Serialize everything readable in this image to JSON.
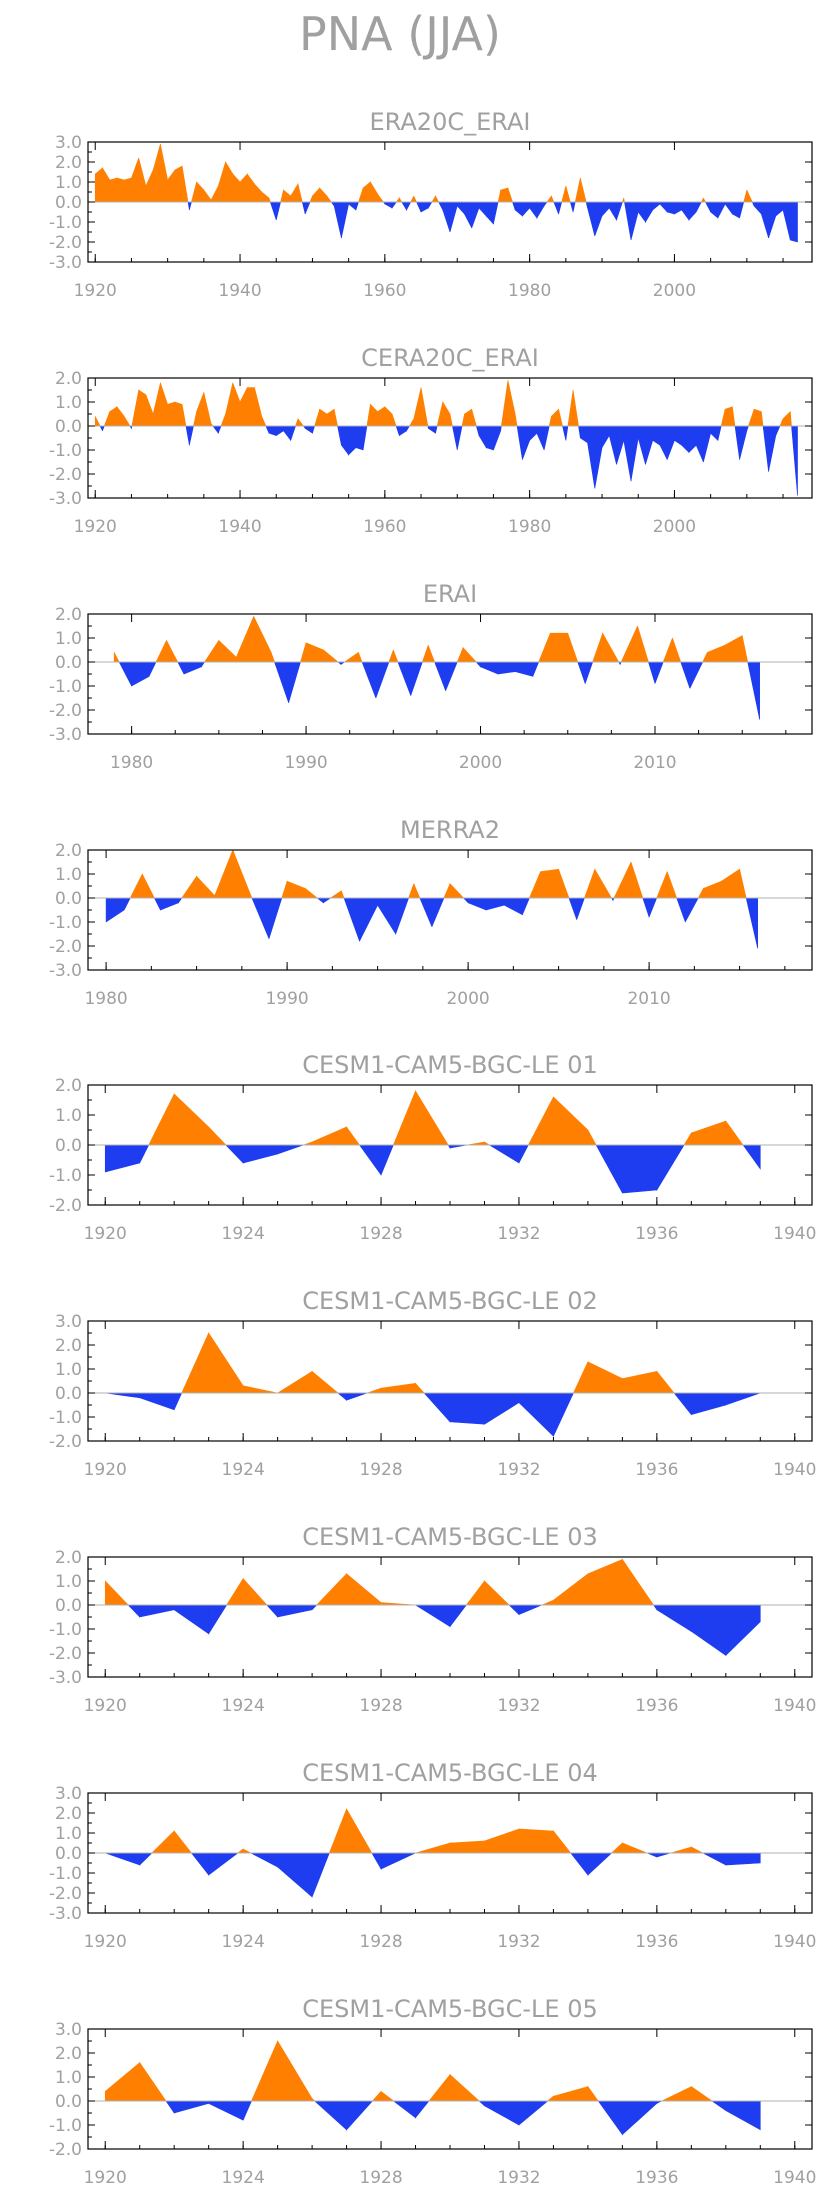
{
  "figure_title": "PNA (JJA)",
  "colors": {
    "positive": "#ff8000",
    "negative": "#1e3cf0",
    "text": "#a0a0a0",
    "frame": "#000000"
  },
  "chart_data": [
    {
      "type": "area",
      "title": "ERA20C_ERAI",
      "xlim": [
        1919,
        2019
      ],
      "ylim": [
        -3,
        3
      ],
      "xticks": [
        "1920",
        "1940",
        "1960",
        "1980",
        "2000"
      ],
      "yticks": [
        "3.0",
        "2.0",
        "1.0",
        "0.0",
        "-1.0",
        "-2.0",
        "-3.0"
      ],
      "x": [
        1920,
        1921,
        1922,
        1923,
        1924,
        1925,
        1926,
        1927,
        1928,
        1929,
        1930,
        1931,
        1932,
        1933,
        1934,
        1935,
        1936,
        1937,
        1938,
        1939,
        1940,
        1941,
        1942,
        1943,
        1944,
        1945,
        1946,
        1947,
        1948,
        1949,
        1950,
        1951,
        1952,
        1953,
        1954,
        1955,
        1956,
        1957,
        1958,
        1959,
        1960,
        1961,
        1962,
        1963,
        1964,
        1965,
        1966,
        1967,
        1968,
        1969,
        1970,
        1971,
        1972,
        1973,
        1974,
        1975,
        1976,
        1977,
        1978,
        1979,
        1980,
        1981,
        1982,
        1983,
        1984,
        1985,
        1986,
        1987,
        1988,
        1989,
        1990,
        1991,
        1992,
        1993,
        1994,
        1995,
        1996,
        1997,
        1998,
        1999,
        2000,
        2001,
        2002,
        2003,
        2004,
        2005,
        2006,
        2007,
        2008,
        2009,
        2010,
        2011,
        2012,
        2013,
        2014,
        2015,
        2016,
        2017
      ],
      "values": [
        1.4,
        1.7,
        1.1,
        1.2,
        1.1,
        1.2,
        2.2,
        0.8,
        1.6,
        2.9,
        1.1,
        1.6,
        1.8,
        -0.4,
        1.0,
        0.6,
        0.1,
        0.8,
        2.0,
        1.4,
        1.0,
        1.4,
        0.9,
        0.5,
        0.2,
        -0.9,
        0.6,
        0.3,
        0.9,
        -0.6,
        0.3,
        0.7,
        0.3,
        -0.2,
        -1.8,
        -0.1,
        -0.4,
        0.7,
        1.0,
        0.4,
        -0.1,
        -0.3,
        0.2,
        -0.4,
        0.3,
        -0.5,
        -0.3,
        0.3,
        -0.4,
        -1.5,
        -0.2,
        -0.6,
        -1.3,
        -0.3,
        -0.7,
        -1.1,
        0.6,
        0.7,
        -0.4,
        -0.7,
        -0.3,
        -0.8,
        -0.2,
        0.3,
        -0.6,
        0.8,
        -0.5,
        1.2,
        -0.3,
        -1.7,
        -0.7,
        -0.3,
        -0.9,
        0.2,
        -1.9,
        -0.5,
        -1.0,
        -0.4,
        -0.1,
        -0.5,
        -0.6,
        -0.4,
        -0.9,
        -0.5,
        0.2,
        -0.5,
        -0.8,
        -0.1,
        -0.6,
        -0.8,
        0.6,
        -0.2,
        -0.6,
        -1.8,
        -0.7,
        -0.4,
        -1.9,
        -2.0
      ]
    },
    {
      "type": "area",
      "title": "CERA20C_ERAI",
      "xlim": [
        1919,
        2019
      ],
      "ylim": [
        -3,
        2
      ],
      "xticks": [
        "1920",
        "1940",
        "1960",
        "1980",
        "2000"
      ],
      "yticks": [
        "2.0",
        "1.0",
        "0.0",
        "-1.0",
        "-2.0",
        "-3.0"
      ],
      "x": [
        1920,
        1921,
        1922,
        1923,
        1924,
        1925,
        1926,
        1927,
        1928,
        1929,
        1930,
        1931,
        1932,
        1933,
        1934,
        1935,
        1936,
        1937,
        1938,
        1939,
        1940,
        1941,
        1942,
        1943,
        1944,
        1945,
        1946,
        1947,
        1948,
        1949,
        1950,
        1951,
        1952,
        1953,
        1954,
        1955,
        1956,
        1957,
        1958,
        1959,
        1960,
        1961,
        1962,
        1963,
        1964,
        1965,
        1966,
        1967,
        1968,
        1969,
        1970,
        1971,
        1972,
        1973,
        1974,
        1975,
        1976,
        1977,
        1978,
        1979,
        1980,
        1981,
        1982,
        1983,
        1984,
        1985,
        1986,
        1987,
        1988,
        1989,
        1990,
        1991,
        1992,
        1993,
        1994,
        1995,
        1996,
        1997,
        1998,
        1999,
        2000,
        2001,
        2002,
        2003,
        2004,
        2005,
        2006,
        2007,
        2008,
        2009,
        2010,
        2011,
        2012,
        2013,
        2014,
        2015,
        2016,
        2017
      ],
      "values": [
        0.4,
        -0.2,
        0.6,
        0.8,
        0.4,
        -0.1,
        1.5,
        1.3,
        0.5,
        1.8,
        0.9,
        1.0,
        0.9,
        -0.8,
        0.6,
        1.4,
        0.1,
        -0.3,
        0.5,
        1.8,
        1.0,
        1.6,
        1.6,
        0.4,
        -0.3,
        -0.4,
        -0.2,
        -0.6,
        0.3,
        -0.1,
        -0.3,
        0.7,
        0.5,
        0.7,
        -0.8,
        -1.2,
        -0.9,
        -1.0,
        0.9,
        0.6,
        0.8,
        0.5,
        -0.4,
        -0.2,
        0.3,
        1.6,
        -0.1,
        -0.3,
        1.0,
        0.5,
        -1.0,
        0.5,
        0.7,
        -0.4,
        -0.9,
        -1.0,
        -0.2,
        1.9,
        0.5,
        -1.4,
        -0.6,
        -0.3,
        -1.0,
        0.4,
        0.7,
        -0.6,
        1.5,
        -0.5,
        -0.7,
        -2.6,
        -0.9,
        -0.4,
        -1.6,
        -0.6,
        -2.3,
        -0.5,
        -1.6,
        -0.6,
        -0.8,
        -1.4,
        -0.6,
        -0.8,
        -1.1,
        -0.8,
        -1.5,
        -0.3,
        -0.6,
        0.7,
        0.8,
        -1.4,
        -0.2,
        0.7,
        0.6,
        -1.9,
        -0.4,
        0.3,
        0.6,
        -2.9
      ]
    },
    {
      "type": "area",
      "title": "ERAI",
      "xlim": [
        1977.5,
        2019
      ],
      "ylim": [
        -3,
        2
      ],
      "xticks": [
        "1980",
        "1990",
        "2000",
        "2010"
      ],
      "yticks": [
        "2.0",
        "1.0",
        "0.0",
        "-1.0",
        "-2.0",
        "-3.0"
      ],
      "x": [
        1979,
        1980,
        1981,
        1982,
        1983,
        1984,
        1985,
        1986,
        1987,
        1988,
        1989,
        1990,
        1991,
        1992,
        1993,
        1994,
        1995,
        1996,
        1997,
        1998,
        1999,
        2000,
        2001,
        2002,
        2003,
        2004,
        2005,
        2006,
        2007,
        2008,
        2009,
        2010,
        2011,
        2012,
        2013,
        2014,
        2015,
        2016
      ],
      "values": [
        0.4,
        -1.0,
        -0.6,
        0.9,
        -0.5,
        -0.2,
        0.9,
        0.2,
        1.9,
        0.4,
        -1.7,
        0.8,
        0.5,
        -0.1,
        0.4,
        -1.5,
        0.5,
        -1.4,
        0.7,
        -1.2,
        0.6,
        -0.2,
        -0.5,
        -0.4,
        -0.6,
        1.2,
        1.2,
        -0.9,
        1.2,
        -0.1,
        1.5,
        -0.9,
        1.0,
        -1.1,
        0.4,
        0.7,
        1.1,
        -2.4
      ]
    },
    {
      "type": "area",
      "title": "MERRA2",
      "xlim": [
        1979,
        2019
      ],
      "ylim": [
        -3,
        2
      ],
      "xticks": [
        "1980",
        "1990",
        "2000",
        "2010"
      ],
      "yticks": [
        "2.0",
        "1.0",
        "0.0",
        "-1.0",
        "-2.0",
        "-3.0"
      ],
      "x": [
        1980,
        1981,
        1982,
        1983,
        1984,
        1985,
        1986,
        1987,
        1988,
        1989,
        1990,
        1991,
        1992,
        1993,
        1994,
        1995,
        1996,
        1997,
        1998,
        1999,
        2000,
        2001,
        2002,
        2003,
        2004,
        2005,
        2006,
        2007,
        2008,
        2009,
        2010,
        2011,
        2012,
        2013,
        2014,
        2015,
        2016
      ],
      "values": [
        -1.0,
        -0.5,
        1.0,
        -0.5,
        -0.2,
        0.9,
        0.1,
        2.0,
        0.1,
        -1.7,
        0.7,
        0.4,
        -0.2,
        0.3,
        -1.8,
        -0.3,
        -1.5,
        0.6,
        -1.2,
        0.6,
        -0.2,
        -0.5,
        -0.3,
        -0.7,
        1.1,
        1.2,
        -0.9,
        1.2,
        -0.1,
        1.5,
        -0.8,
        1.1,
        -1.0,
        0.4,
        0.7,
        1.2,
        -2.1
      ]
    },
    {
      "type": "area",
      "title": "CESM1-CAM5-BGC-LE 01",
      "xlim": [
        1919.5,
        1940.5
      ],
      "ylim": [
        -2,
        2
      ],
      "xticks": [
        "1920",
        "1924",
        "1928",
        "1932",
        "1936",
        "1940"
      ],
      "yticks": [
        "2.0",
        "1.0",
        "0.0",
        "-1.0",
        "-2.0"
      ],
      "x": [
        1920,
        1921,
        1922,
        1923,
        1924,
        1925,
        1926,
        1927,
        1928,
        1929,
        1930,
        1931,
        1932,
        1933,
        1934,
        1935,
        1936,
        1937,
        1938,
        1939
      ],
      "values": [
        -0.9,
        -0.6,
        1.7,
        0.6,
        -0.6,
        -0.3,
        0.1,
        0.6,
        -1.0,
        1.8,
        -0.1,
        0.1,
        -0.6,
        1.6,
        0.5,
        -1.6,
        -1.5,
        0.4,
        0.8,
        -0.8
      ]
    },
    {
      "type": "area",
      "title": "CESM1-CAM5-BGC-LE 02",
      "xlim": [
        1919.5,
        1940.5
      ],
      "ylim": [
        -2,
        3
      ],
      "xticks": [
        "1920",
        "1924",
        "1928",
        "1932",
        "1936",
        "1940"
      ],
      "yticks": [
        "3.0",
        "2.0",
        "1.0",
        "0.0",
        "-1.0",
        "-2.0"
      ],
      "x": [
        1920,
        1921,
        1922,
        1923,
        1924,
        1925,
        1926,
        1927,
        1928,
        1929,
        1930,
        1931,
        1932,
        1933,
        1934,
        1935,
        1936,
        1937,
        1938,
        1939
      ],
      "values": [
        0.0,
        -0.2,
        -0.7,
        2.5,
        0.3,
        0.0,
        0.9,
        -0.3,
        0.2,
        0.4,
        -1.2,
        -1.3,
        -0.4,
        -1.8,
        1.3,
        0.6,
        0.9,
        -0.9,
        -0.5,
        0.0
      ]
    },
    {
      "type": "area",
      "title": "CESM1-CAM5-BGC-LE 03",
      "xlim": [
        1919.5,
        1940.5
      ],
      "ylim": [
        -3,
        2
      ],
      "xticks": [
        "1920",
        "1924",
        "1928",
        "1932",
        "1936",
        "1940"
      ],
      "yticks": [
        "2.0",
        "1.0",
        "0.0",
        "-1.0",
        "-2.0",
        "-3.0"
      ],
      "x": [
        1920,
        1921,
        1922,
        1923,
        1924,
        1925,
        1926,
        1927,
        1928,
        1929,
        1930,
        1931,
        1932,
        1933,
        1934,
        1935,
        1936,
        1937,
        1938,
        1939
      ],
      "values": [
        1.0,
        -0.5,
        -0.2,
        -1.2,
        1.1,
        -0.5,
        -0.2,
        1.3,
        0.1,
        0.0,
        -0.9,
        1.0,
        -0.4,
        0.2,
        1.3,
        1.9,
        -0.2,
        -1.1,
        -2.1,
        -0.7
      ]
    },
    {
      "type": "area",
      "title": "CESM1-CAM5-BGC-LE 04",
      "xlim": [
        1919.5,
        1940.5
      ],
      "ylim": [
        -3,
        3
      ],
      "xticks": [
        "1920",
        "1924",
        "1928",
        "1932",
        "1936",
        "1940"
      ],
      "yticks": [
        "3.0",
        "2.0",
        "1.0",
        "0.0",
        "-1.0",
        "-2.0",
        "-3.0"
      ],
      "x": [
        1920,
        1921,
        1922,
        1923,
        1924,
        1925,
        1926,
        1927,
        1928,
        1929,
        1930,
        1931,
        1932,
        1933,
        1934,
        1935,
        1936,
        1937,
        1938,
        1939
      ],
      "values": [
        0.0,
        -0.6,
        1.1,
        -1.1,
        0.2,
        -0.7,
        -2.2,
        2.2,
        -0.8,
        0.0,
        0.5,
        0.6,
        1.2,
        1.1,
        -1.1,
        0.5,
        -0.2,
        0.3,
        -0.6,
        -0.5
      ]
    },
    {
      "type": "area",
      "title": "CESM1-CAM5-BGC-LE 05",
      "xlim": [
        1919.5,
        1940.5
      ],
      "ylim": [
        -2,
        3
      ],
      "xticks": [
        "1920",
        "1924",
        "1928",
        "1932",
        "1936",
        "1940"
      ],
      "yticks": [
        "3.0",
        "2.0",
        "1.0",
        "0.0",
        "-1.0",
        "-2.0"
      ],
      "x": [
        1920,
        1921,
        1922,
        1923,
        1924,
        1925,
        1926,
        1927,
        1928,
        1929,
        1930,
        1931,
        1932,
        1933,
        1934,
        1935,
        1936,
        1937,
        1938,
        1939
      ],
      "values": [
        0.4,
        1.6,
        -0.5,
        -0.1,
        -0.8,
        2.5,
        0.1,
        -1.2,
        0.4,
        -0.7,
        1.1,
        -0.2,
        -1.0,
        0.2,
        0.6,
        -1.4,
        -0.1,
        0.6,
        -0.4,
        -1.2
      ]
    }
  ]
}
